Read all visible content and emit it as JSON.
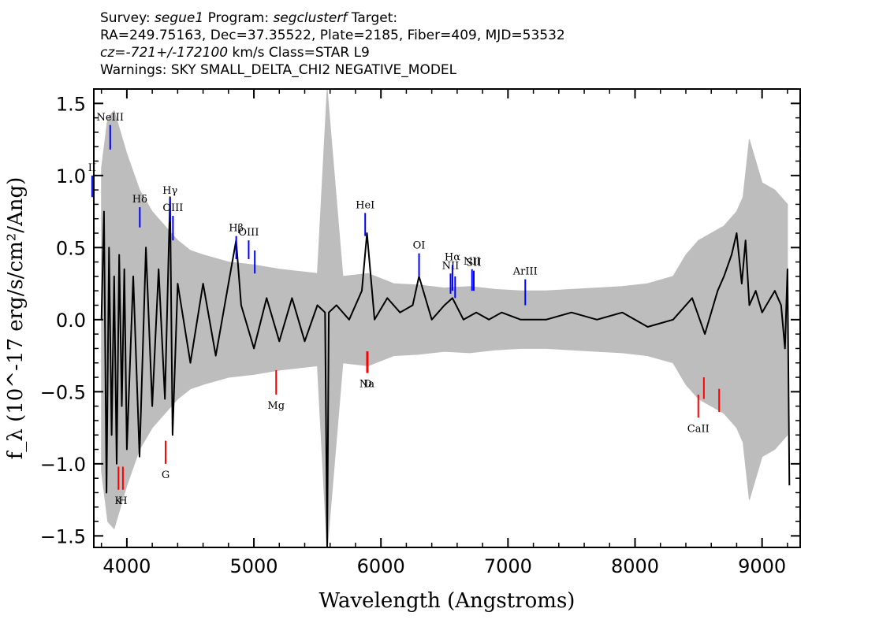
{
  "header": {
    "line1": {
      "survey_label": "Survey: ",
      "survey": "segue1",
      "program_label": " Program: ",
      "program": "segclusterf",
      "target_label": " Target:"
    },
    "line2": "RA=249.75163, Dec=37.35522, Plate=2185, Fiber=409, MJD=53532",
    "line3": {
      "cz": "cz=-721+/-172100",
      "rest": " km/s Class=STAR L9"
    },
    "line4": "Warnings: SKY SMALL_DELTA_CHI2 NEGATIVE_MODEL"
  },
  "chart_data": {
    "type": "line",
    "xlabel": "Wavelength (Angstroms)",
    "ylabel": "f_λ (10^-17 erg/s/cm²/Ang)",
    "xlim": [
      3740,
      9300
    ],
    "ylim": [
      -1.58,
      1.6
    ],
    "xticks": [
      4000,
      5000,
      6000,
      7000,
      8000,
      9000
    ],
    "yticks": [
      -1.5,
      -1.0,
      -0.5,
      0.0,
      0.5,
      1.0,
      1.5
    ],
    "ytick_labels": [
      "−1.5",
      "−1.0",
      "−0.5",
      "0.0",
      "0.5",
      "1.0",
      "1.5"
    ],
    "grid": false,
    "series": [
      {
        "role": "error",
        "color": "#bdbdbd",
        "x": [
          3800,
          3850,
          3900,
          3950,
          4000,
          4100,
          4200,
          4300,
          4400,
          4500,
          4600,
          4800,
          5000,
          5200,
          5400,
          5500,
          5577,
          5700,
          5900,
          6100,
          6300,
          6500,
          6700,
          6900,
          7100,
          7300,
          7500,
          7700,
          7900,
          8100,
          8300,
          8400,
          8500,
          8600,
          8700,
          8800,
          8850,
          8900,
          9000,
          9100,
          9200
        ],
        "y": [
          1.05,
          1.4,
          1.45,
          1.3,
          1.15,
          0.9,
          0.75,
          0.65,
          0.55,
          0.48,
          0.45,
          0.4,
          0.38,
          0.35,
          0.33,
          0.32,
          1.6,
          0.3,
          0.32,
          0.25,
          0.24,
          0.22,
          0.23,
          0.21,
          0.2,
          0.2,
          0.21,
          0.22,
          0.23,
          0.25,
          0.3,
          0.45,
          0.55,
          0.6,
          0.65,
          0.75,
          0.85,
          1.25,
          0.95,
          0.9,
          0.8
        ]
      },
      {
        "role": "flux",
        "color": "#000000",
        "x": [
          3800,
          3820,
          3840,
          3860,
          3880,
          3900,
          3920,
          3940,
          3960,
          3980,
          4000,
          4050,
          4100,
          4150,
          4200,
          4250,
          4300,
          4340,
          4360,
          4400,
          4500,
          4600,
          4700,
          4800,
          4860,
          4900,
          5000,
          5100,
          5200,
          5300,
          5400,
          5500,
          5560,
          5577,
          5590,
          5650,
          5750,
          5850,
          5890,
          5950,
          6050,
          6150,
          6250,
          6300,
          6400,
          6500,
          6563,
          6650,
          6750,
          6850,
          6950,
          7100,
          7300,
          7500,
          7700,
          7900,
          8100,
          8300,
          8450,
          8550,
          8650,
          8700,
          8760,
          8800,
          8840,
          8870,
          8900,
          8950,
          9000,
          9100,
          9150,
          9180,
          9200,
          9215
        ],
        "y": [
          0.0,
          0.75,
          -1.2,
          0.5,
          -0.8,
          0.3,
          -1.0,
          0.45,
          -0.6,
          0.35,
          -0.9,
          0.3,
          -0.95,
          0.5,
          -0.6,
          0.35,
          -0.55,
          0.85,
          -0.8,
          0.25,
          -0.3,
          0.25,
          -0.25,
          0.25,
          0.55,
          0.1,
          -0.2,
          0.15,
          -0.15,
          0.15,
          -0.15,
          0.1,
          0.05,
          -1.58,
          0.05,
          0.1,
          0.0,
          0.2,
          0.6,
          0.0,
          0.15,
          0.05,
          0.1,
          0.3,
          0.0,
          0.1,
          0.15,
          0.0,
          0.05,
          0.0,
          0.05,
          0.0,
          0.0,
          0.05,
          0.0,
          0.05,
          -0.05,
          0.0,
          0.15,
          -0.1,
          0.2,
          0.3,
          0.45,
          0.6,
          0.25,
          0.55,
          0.1,
          0.2,
          0.05,
          0.2,
          0.1,
          -0.2,
          0.35,
          -1.15
        ]
      }
    ],
    "emission_lines": [
      {
        "label": "NeIII",
        "x": 3869,
        "y_top": 1.35,
        "y_bottom": 1.18
      },
      {
        "label": "II",
        "x": 3727,
        "y_top": 1.0,
        "y_bottom": 0.85
      },
      {
        "label": "Hδ",
        "x": 4102,
        "y_top": 0.78,
        "y_bottom": 0.64
      },
      {
        "label": "Hγ",
        "x": 4340,
        "y_top": 0.84,
        "y_bottom": 0.68
      },
      {
        "label": "OIII",
        "x": 4363,
        "y_top": 0.72,
        "y_bottom": 0.55
      },
      {
        "label": "Hβ",
        "x": 4861,
        "y_top": 0.58,
        "y_bottom": 0.42
      },
      {
        "label": "OIII",
        "x": 4959,
        "y_top": 0.55,
        "y_bottom": 0.42
      },
      {
        "label": "",
        "x": 5007,
        "y_top": 0.48,
        "y_bottom": 0.32
      },
      {
        "label": "HeI",
        "x": 5876,
        "y_top": 0.74,
        "y_bottom": 0.58
      },
      {
        "label": "OI",
        "x": 6300,
        "y_top": 0.46,
        "y_bottom": 0.3
      },
      {
        "label": "NII",
        "x": 6548,
        "y_top": 0.32,
        "y_bottom": 0.18
      },
      {
        "label": "Hα",
        "x": 6563,
        "y_top": 0.38,
        "y_bottom": 0.2
      },
      {
        "label": "",
        "x": 6584,
        "y_top": 0.3,
        "y_bottom": 0.15
      },
      {
        "label": "NII",
        "x": 6717,
        "y_top": 0.35,
        "y_bottom": 0.2
      },
      {
        "label": "SII",
        "x": 6731,
        "y_top": 0.34,
        "y_bottom": 0.2
      },
      {
        "label": "ArIII",
        "x": 7136,
        "y_top": 0.28,
        "y_bottom": 0.1
      }
    ],
    "absorption_lines": [
      {
        "label": "K",
        "x": 3934,
        "y_top": -1.02,
        "y_bottom": -1.18
      },
      {
        "label": "H",
        "x": 3969,
        "y_top": -1.02,
        "y_bottom": -1.18
      },
      {
        "label": "G",
        "x": 4305,
        "y_top": -0.84,
        "y_bottom": -1.0
      },
      {
        "label": "Mg",
        "x": 5175,
        "y_top": -0.35,
        "y_bottom": -0.52
      },
      {
        "label": "Na",
        "x": 5890,
        "y_top": -0.22,
        "y_bottom": -0.37
      },
      {
        "label": "D",
        "x": 5896,
        "y_top": -0.22,
        "y_bottom": -0.37
      },
      {
        "label": "CaII",
        "x": 8498,
        "y_top": -0.52,
        "y_bottom": -0.68
      },
      {
        "label": "",
        "x": 8542,
        "y_top": -0.4,
        "y_bottom": -0.55
      },
      {
        "label": "",
        "x": 8662,
        "y_top": -0.48,
        "y_bottom": -0.64
      }
    ],
    "emission_color": "#0000ff",
    "absorption_color": "#ff0000"
  }
}
